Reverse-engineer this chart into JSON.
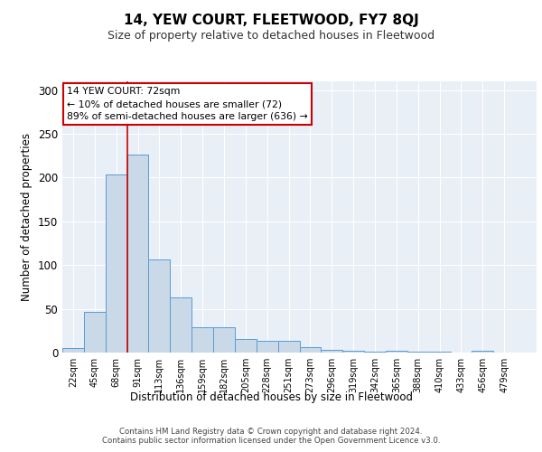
{
  "title": "14, YEW COURT, FLEETWOOD, FY7 8QJ",
  "subtitle": "Size of property relative to detached houses in Fleetwood",
  "xlabel": "Distribution of detached houses by size in Fleetwood",
  "ylabel": "Number of detached properties",
  "bar_values": [
    5,
    46,
    204,
    226,
    106,
    63,
    29,
    29,
    15,
    13,
    13,
    6,
    3,
    2,
    1,
    2,
    1,
    1,
    0,
    2,
    0,
    0
  ],
  "bin_labels": [
    "22sqm",
    "45sqm",
    "68sqm",
    "91sqm",
    "113sqm",
    "136sqm",
    "159sqm",
    "182sqm",
    "205sqm",
    "228sqm",
    "251sqm",
    "273sqm",
    "296sqm",
    "319sqm",
    "342sqm",
    "365sqm",
    "388sqm",
    "410sqm",
    "433sqm",
    "456sqm",
    "479sqm"
  ],
  "bar_color": "#c9d9e8",
  "bar_edge_color": "#5b9bd5",
  "background_color": "#e8eff6",
  "grid_color": "#ffffff",
  "annotation_line1": "14 YEW COURT: 72sqm",
  "annotation_line2": "← 10% of detached houses are smaller (72)",
  "annotation_line3": "89% of semi-detached houses are larger (636) →",
  "annotation_box_color": "#ffffff",
  "annotation_box_edge_color": "#cc0000",
  "redline_x": 2.5,
  "ylim": [
    0,
    310
  ],
  "yticks": [
    0,
    50,
    100,
    150,
    200,
    250,
    300
  ],
  "footer_line1": "Contains HM Land Registry data © Crown copyright and database right 2024.",
  "footer_line2": "Contains public sector information licensed under the Open Government Licence v3.0."
}
